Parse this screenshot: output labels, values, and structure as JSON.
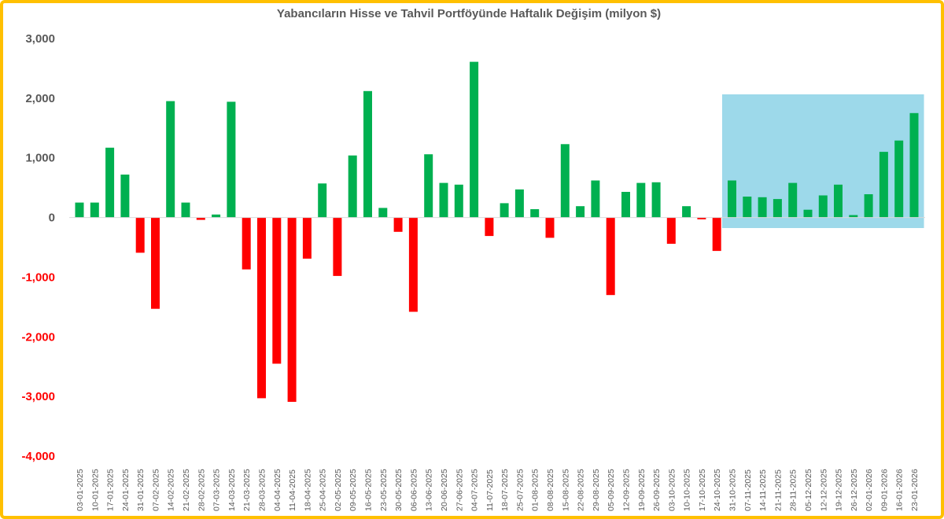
{
  "chart_data": {
    "type": "bar",
    "title": "Yabancıların Hisse ve Tahvil Portföyünde Haftalık Değişim (milyon $)",
    "xlabel": "",
    "ylabel": "",
    "ylim": [
      -4000,
      3000
    ],
    "yticks": [
      3000,
      2000,
      1000,
      0,
      -1000,
      -2000,
      -3000,
      -4000
    ],
    "ytick_labels": [
      "3,000",
      "2,000",
      "1,000",
      "0",
      "-1,000",
      "-2,000",
      "-3,000",
      "-4,000"
    ],
    "grid": false,
    "legend": "none",
    "colors": {
      "positive": "#00B050",
      "negative": "#FF0000",
      "positive_tick": "#595959",
      "negative_tick": "#FF0000",
      "highlight": "#9DD9EA",
      "frame": "#FFC000",
      "zero_line": "#D9D9D9"
    },
    "highlight_range": [
      "31-10-2025",
      "23-01-2026"
    ],
    "categories": [
      "03-01-2025",
      "10-01-2025",
      "17-01-2025",
      "24-01-2025",
      "31-01-2025",
      "07-02-2025",
      "14-02-2025",
      "21-02-2025",
      "28-02-2025",
      "07-03-2025",
      "14-03-2025",
      "21-03-2025",
      "28-03-2025",
      "04-04-2025",
      "11-04-2025",
      "18-04-2025",
      "25-04-2025",
      "02-05-2025",
      "09-05-2025",
      "16-05-2025",
      "23-05-2025",
      "30-05-2025",
      "06-06-2025",
      "13-06-2025",
      "20-06-2025",
      "27-06-2025",
      "04-07-2025",
      "11-07-2025",
      "18-07-2025",
      "25-07-2025",
      "01-08-2025",
      "08-08-2025",
      "15-08-2025",
      "22-08-2025",
      "29-08-2025",
      "05-09-2025",
      "12-09-2025",
      "19-09-2025",
      "26-09-2025",
      "03-10-2025",
      "10-10-2025",
      "17-10-2025",
      "24-10-2025",
      "31-10-2025",
      "07-11-2025",
      "14-11-2025",
      "21-11-2025",
      "28-11-2025",
      "05-12-2025",
      "12-12-2025",
      "19-12-2025",
      "26-12-2025",
      "02-01-2026",
      "09-01-2026",
      "16-01-2026",
      "23-01-2026"
    ],
    "values": [
      250,
      250,
      1170,
      720,
      -590,
      -1530,
      1950,
      250,
      -40,
      50,
      1940,
      -870,
      -3030,
      -2450,
      -3090,
      -690,
      570,
      -980,
      1040,
      2120,
      160,
      -240,
      -1580,
      1060,
      580,
      550,
      2610,
      -310,
      240,
      470,
      140,
      -340,
      1230,
      190,
      620,
      -1300,
      430,
      580,
      590,
      -440,
      190,
      -30,
      -560,
      620,
      350,
      340,
      310,
      580,
      130,
      370,
      550,
      40,
      390,
      1100,
      1290,
      1750
    ]
  }
}
